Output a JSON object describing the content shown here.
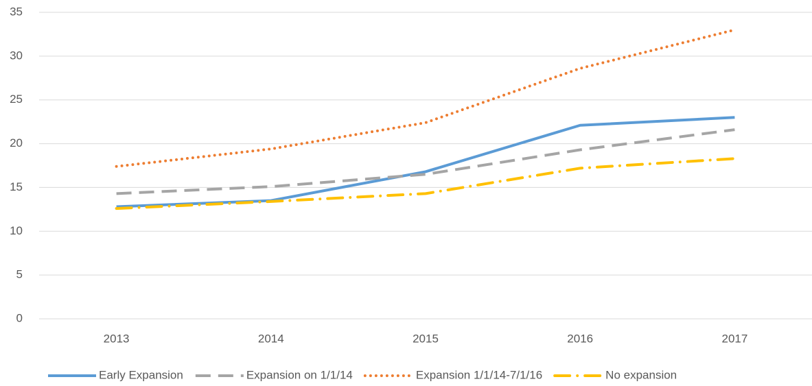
{
  "chart_data": {
    "type": "line",
    "categories": [
      "2013",
      "2014",
      "2015",
      "2016",
      "2017"
    ],
    "series": [
      {
        "name": "Early Expansion",
        "color": "#5b9bd5",
        "dash": "solid",
        "values": [
          12.8,
          13.5,
          16.8,
          22.1,
          23.0
        ]
      },
      {
        "name": "Expansion on 1/1/14",
        "color": "#a5a5a5",
        "dash": "long-dash",
        "values": [
          14.3,
          15.1,
          16.5,
          19.3,
          21.6
        ]
      },
      {
        "name": "Expansion 1/1/14-7/1/16",
        "color": "#ed7d31",
        "dash": "dot",
        "values": [
          17.4,
          19.4,
          22.4,
          28.6,
          33.0
        ]
      },
      {
        "name": "No expansion",
        "color": "#ffc000",
        "dash": "dash-dot",
        "values": [
          12.6,
          13.4,
          14.3,
          17.2,
          18.3
        ]
      }
    ],
    "ylim": [
      0,
      35
    ],
    "yticks": [
      0,
      5,
      10,
      15,
      20,
      25,
      30,
      35
    ],
    "grid": true,
    "legend": "bottom"
  }
}
